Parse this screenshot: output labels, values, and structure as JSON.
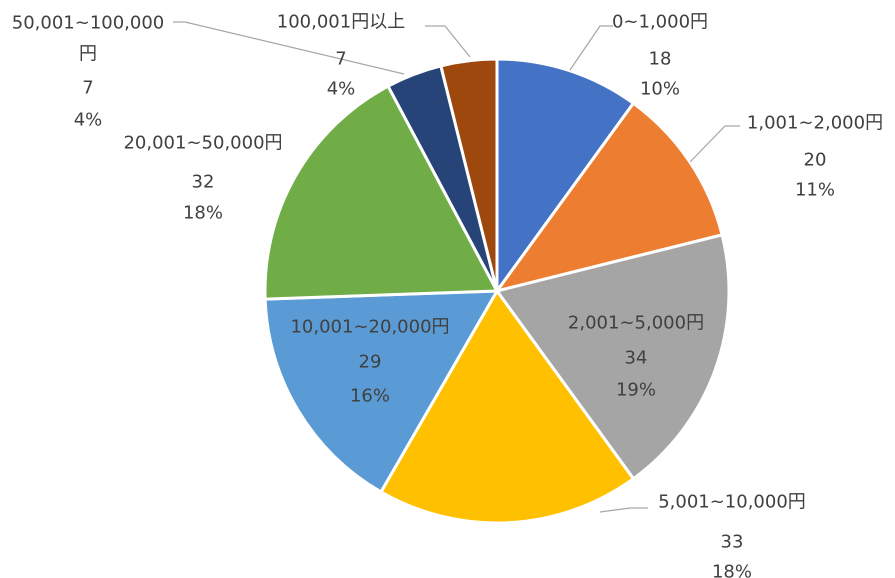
{
  "chart_data": {
    "type": "pie",
    "title": "",
    "slices": [
      {
        "label": "0~1,000円",
        "value": 18,
        "percent": "10%",
        "color": "#4472C4"
      },
      {
        "label": "1,001~2,000円",
        "value": 20,
        "percent": "11%",
        "color": "#ED7D31"
      },
      {
        "label": "2,001~5,000円",
        "value": 34,
        "percent": "19%",
        "color": "#A5A5A5"
      },
      {
        "label": "5,001~10,000円",
        "value": 33,
        "percent": "18%",
        "color": "#FFC000"
      },
      {
        "label": "10,001~20,000円",
        "value": 29,
        "percent": "16%",
        "color": "#5B9BD5"
      },
      {
        "label": "20,001~50,000円",
        "value": 32,
        "percent": "18%",
        "color": "#70AD47"
      },
      {
        "label": "50,001~100,000円",
        "value": 7,
        "percent": "4%",
        "color": "#264478"
      },
      {
        "label": "100,001円以上",
        "value": 7,
        "percent": "4%",
        "color": "#9E480E"
      }
    ]
  }
}
